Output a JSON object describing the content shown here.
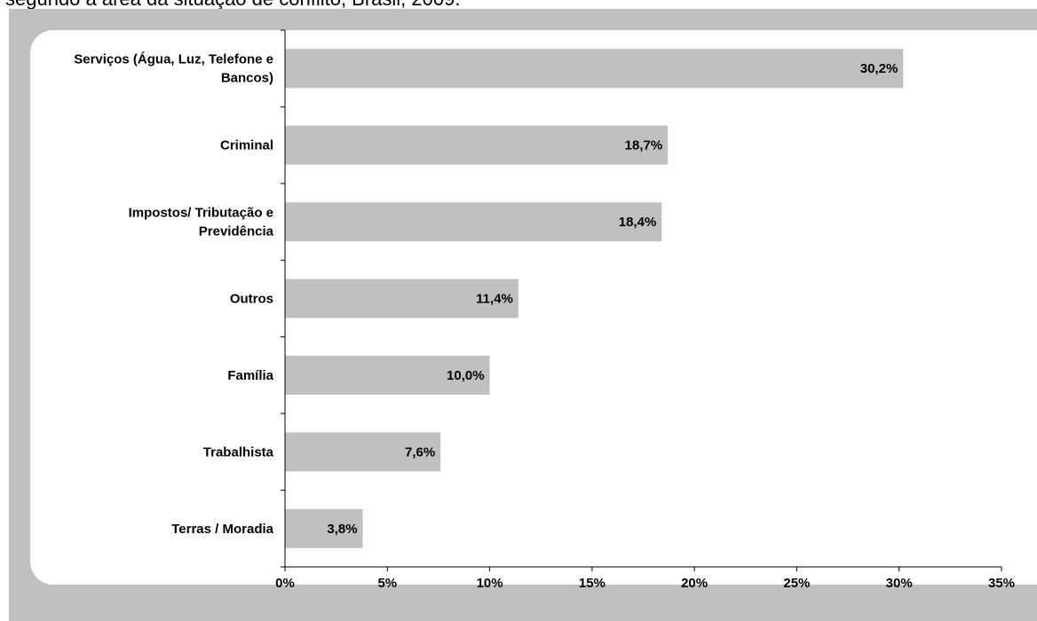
{
  "caption": "segundo a área da situação de conflito, Brasil, 2009.",
  "chart_data": {
    "type": "bar",
    "orientation": "horizontal",
    "categories": [
      "Serviços (Água, Luz, Telefone e Bancos)",
      "Criminal",
      "Impostos/ Tributação e Previdência",
      "Outros",
      "Família",
      "Trabalhista",
      "Terras / Moradia"
    ],
    "category_lines": [
      [
        "Serviços (Água, Luz, Telefone e",
        "Bancos)"
      ],
      [
        "Criminal"
      ],
      [
        "Impostos/ Tributação e",
        "Previdência"
      ],
      [
        "Outros"
      ],
      [
        "Família"
      ],
      [
        "Trabalhista"
      ],
      [
        "Terras / Moradia"
      ]
    ],
    "values": [
      30.2,
      18.7,
      18.4,
      11.4,
      10.0,
      7.6,
      3.8
    ],
    "value_labels": [
      "30,2%",
      "18,7%",
      "18,4%",
      "11,4%",
      "10,0%",
      "7,6%",
      "3,8%"
    ],
    "x_ticks": [
      0,
      5,
      10,
      15,
      20,
      25,
      30,
      35
    ],
    "x_tick_labels": [
      "0%",
      "5%",
      "10%",
      "15%",
      "20%",
      "25%",
      "30%",
      "35%"
    ],
    "xlim": [
      0,
      35
    ],
    "title": "",
    "xlabel": "",
    "ylabel": "",
    "grid": false,
    "legend": "none",
    "colors": {
      "bar": "#c0c0c0",
      "frame": "#c0c0c0",
      "axis": "#000000"
    }
  }
}
